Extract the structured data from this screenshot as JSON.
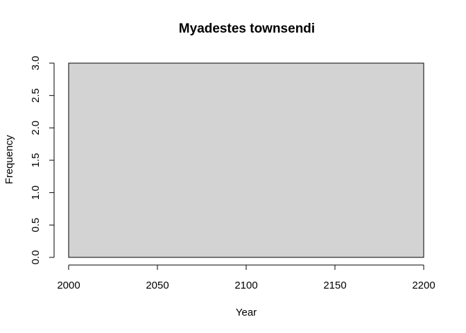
{
  "chart_data": {
    "type": "bar",
    "title": "Myadestes townsendi",
    "xlabel": "Year",
    "ylabel": "Frequency",
    "bins": [
      {
        "start": 2000,
        "end": 2200,
        "count": 3
      }
    ],
    "xlim": [
      2000,
      2200
    ],
    "ylim": [
      0,
      3
    ],
    "x_ticks": [
      2000,
      2050,
      2100,
      2150,
      2200
    ],
    "y_ticks": [
      0,
      0.5,
      1,
      1.5,
      2,
      2.5,
      3
    ],
    "x_tick_labels": [
      "2000",
      "2050",
      "2100",
      "2150",
      "2200"
    ],
    "y_tick_labels": [
      "0.0",
      "0.5",
      "1.0",
      "1.5",
      "2.0",
      "2.5",
      "3.0"
    ],
    "grid": false,
    "bar_color": "#d3d3d3"
  }
}
